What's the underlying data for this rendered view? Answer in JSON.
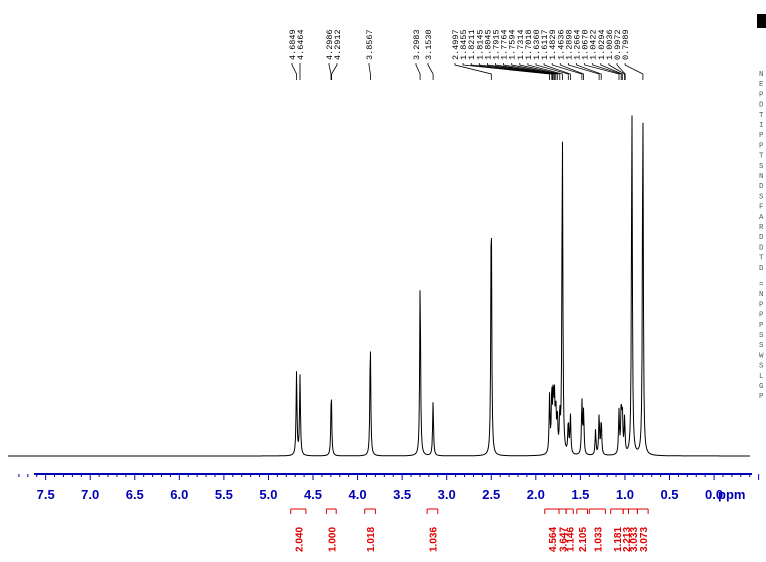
{
  "chart_data": {
    "type": "line",
    "title": "",
    "xlabel": "ppm",
    "ylabel": "",
    "x_axis": {
      "reversed": true,
      "range": [
        7.9,
        -0.65
      ],
      "ticks": [
        7.5,
        7.0,
        6.5,
        6.0,
        5.5,
        5.0,
        4.5,
        4.0,
        3.5,
        3.0,
        2.5,
        2.0,
        1.5,
        1.0,
        0.5,
        0.0
      ],
      "tick_labels": [
        "7.5",
        "7.0",
        "6.5",
        "6.0",
        "5.5",
        "5.0",
        "4.5",
        "4.0",
        "3.5",
        "3.0",
        "2.5",
        "2.0",
        "1.5",
        "1.0",
        "0.5",
        "0.0"
      ],
      "unit_label": "ppm"
    },
    "peak_labels": [
      "4.6849",
      "4.6464",
      "4.2986",
      "4.2912",
      "3.8567",
      "3.2983",
      "3.1530",
      "2.4997",
      "1.8455",
      "1.8211",
      "1.8145",
      "1.8045",
      "1.7915",
      "1.7764",
      "1.7594",
      "1.7314",
      "1.7018",
      "1.6360",
      "1.6117",
      "1.4829",
      "1.4636",
      "1.2898",
      "1.2664",
      "1.0670",
      "1.0422",
      "1.0294",
      "1.0036",
      "0.9972",
      "0.7989"
    ],
    "peaks": [
      {
        "ppm": 4.685,
        "height": 0.23
      },
      {
        "ppm": 4.646,
        "height": 0.22
      },
      {
        "ppm": 4.295,
        "height": 0.18
      },
      {
        "ppm": 3.857,
        "height": 0.32
      },
      {
        "ppm": 3.298,
        "height": 0.49
      },
      {
        "ppm": 3.153,
        "height": 0.15
      },
      {
        "ppm": 2.5,
        "height": 0.72
      },
      {
        "ppm": 1.846,
        "height": 0.16
      },
      {
        "ppm": 1.821,
        "height": 0.17
      },
      {
        "ppm": 1.805,
        "height": 0.16
      },
      {
        "ppm": 1.791,
        "height": 0.14
      },
      {
        "ppm": 1.776,
        "height": 0.12
      },
      {
        "ppm": 1.759,
        "height": 0.1
      },
      {
        "ppm": 1.731,
        "height": 0.1
      },
      {
        "ppm": 1.702,
        "height": 0.9
      },
      {
        "ppm": 1.636,
        "height": 0.09
      },
      {
        "ppm": 1.612,
        "height": 0.11
      },
      {
        "ppm": 1.483,
        "height": 0.15
      },
      {
        "ppm": 1.464,
        "height": 0.12
      },
      {
        "ppm": 1.33,
        "height": 0.07
      },
      {
        "ppm": 1.29,
        "height": 0.11
      },
      {
        "ppm": 1.266,
        "height": 0.1
      },
      {
        "ppm": 1.067,
        "height": 0.12
      },
      {
        "ppm": 1.042,
        "height": 0.13
      },
      {
        "ppm": 1.029,
        "height": 0.11
      },
      {
        "ppm": 1.004,
        "height": 0.1
      },
      {
        "ppm": 0.922,
        "height": 0.97
      },
      {
        "ppm": 0.799,
        "height": 0.98
      }
    ],
    "integrals": [
      {
        "from": 4.75,
        "to": 4.58,
        "label": "2.040"
      },
      {
        "from": 4.35,
        "to": 4.24,
        "label": "1.000"
      },
      {
        "from": 3.92,
        "to": 3.8,
        "label": "1.018"
      },
      {
        "from": 3.22,
        "to": 3.1,
        "label": "1.036"
      },
      {
        "from": 1.9,
        "to": 1.74,
        "label": "4.564"
      },
      {
        "from": 1.74,
        "to": 1.66,
        "label": "3.647"
      },
      {
        "from": 1.66,
        "to": 1.58,
        "label": "1.146"
      },
      {
        "from": 1.54,
        "to": 1.42,
        "label": "2.105"
      },
      {
        "from": 1.4,
        "to": 1.22,
        "label": "1.033"
      },
      {
        "from": 1.16,
        "to": 1.02,
        "label": "1.181"
      },
      {
        "from": 1.02,
        "to": 0.96,
        "label": "2.213"
      },
      {
        "from": 0.96,
        "to": 0.86,
        "label": "3.033"
      },
      {
        "from": 0.86,
        "to": 0.74,
        "label": "3.073"
      }
    ],
    "grid": false,
    "legend": "none",
    "colors": {
      "spectrum": "#000000",
      "axis": "#0000b4",
      "integral": "#e00000"
    }
  },
  "params_panel": {
    "letters": [
      "N",
      "E",
      "P",
      "D",
      "T",
      "I",
      "P",
      "P",
      "T",
      "S",
      "N",
      "D",
      "S",
      "F",
      "A",
      "R",
      "D",
      "D",
      "T",
      "D",
      "=",
      "N",
      "P",
      "P",
      "P",
      "S",
      "S",
      "W",
      "S",
      "L",
      "G",
      "P"
    ]
  }
}
